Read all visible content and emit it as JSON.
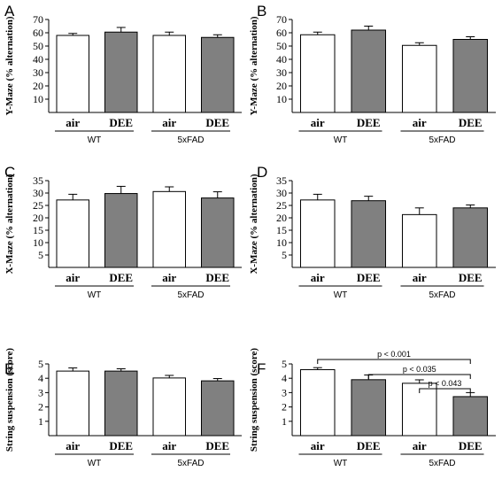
{
  "chart_data": [
    {
      "panel": "A",
      "type": "bar",
      "ylabel": "Y-Maze (% alternation)",
      "ylim": [
        0,
        70
      ],
      "yticks": [
        10,
        20,
        30,
        40,
        50,
        60,
        70
      ],
      "categories": [
        "air",
        "DEE",
        "air",
        "DEE"
      ],
      "groups": [
        "WT",
        "5xFAD"
      ],
      "values": [
        58,
        60.5,
        58,
        56.5
      ],
      "errors": [
        1.5,
        3.5,
        2.5,
        2
      ],
      "fills": [
        "#ffffff",
        "#808080",
        "#ffffff",
        "#808080"
      ],
      "annotations": []
    },
    {
      "panel": "B",
      "type": "bar",
      "ylabel": "Y-Maze (% alternation)",
      "ylim": [
        0,
        70
      ],
      "yticks": [
        10,
        20,
        30,
        40,
        50,
        60,
        70
      ],
      "categories": [
        "air",
        "DEE",
        "air",
        "DEE"
      ],
      "groups": [
        "WT",
        "5xFAD"
      ],
      "values": [
        58.5,
        62,
        50.5,
        55
      ],
      "errors": [
        2,
        3,
        2,
        2
      ],
      "fills": [
        "#ffffff",
        "#808080",
        "#ffffff",
        "#808080"
      ],
      "annotations": []
    },
    {
      "panel": "C",
      "type": "bar",
      "ylabel": "X-Maze (% alternation)",
      "ylim": [
        0,
        35
      ],
      "yticks": [
        5,
        10,
        15,
        20,
        25,
        30,
        35
      ],
      "categories": [
        "air",
        "DEE",
        "air",
        "DEE"
      ],
      "groups": [
        "WT",
        "5xFAD"
      ],
      "values": [
        27.2,
        29.8,
        30.6,
        28
      ],
      "errors": [
        2.3,
        2.9,
        1.9,
        2.5
      ],
      "fills": [
        "#ffffff",
        "#808080",
        "#ffffff",
        "#808080"
      ],
      "annotations": []
    },
    {
      "panel": "D",
      "type": "bar",
      "ylabel": "X-Maze (% alternation)",
      "ylim": [
        0,
        35
      ],
      "yticks": [
        5,
        10,
        15,
        20,
        25,
        30,
        35
      ],
      "categories": [
        "air",
        "DEE",
        "air",
        "DEE"
      ],
      "groups": [
        "WT",
        "5xFAD"
      ],
      "values": [
        27.2,
        26.9,
        21.3,
        24
      ],
      "errors": [
        2.3,
        1.8,
        2.7,
        1.2
      ],
      "fills": [
        "#ffffff",
        "#808080",
        "#ffffff",
        "#808080"
      ],
      "annotations": []
    },
    {
      "panel": "E",
      "type": "bar",
      "ylabel": "String suspension (score)",
      "ylim": [
        0,
        5
      ],
      "yticks": [
        1,
        2,
        3,
        4,
        5
      ],
      "categories": [
        "air",
        "DEE",
        "air",
        "DEE"
      ],
      "groups": [
        "WT",
        "5xFAD"
      ],
      "values": [
        4.5,
        4.5,
        4.02,
        3.82
      ],
      "errors": [
        0.22,
        0.16,
        0.18,
        0.16
      ],
      "fills": [
        "#ffffff",
        "#808080",
        "#ffffff",
        "#808080"
      ],
      "annotations": []
    },
    {
      "panel": "F",
      "type": "bar",
      "ylabel": "String suspension (score)",
      "ylim": [
        0,
        5
      ],
      "yticks": [
        1,
        2,
        3,
        4,
        5
      ],
      "categories": [
        "air",
        "DEE",
        "air",
        "DEE"
      ],
      "groups": [
        "WT",
        "5xFAD"
      ],
      "values": [
        4.6,
        3.9,
        3.65,
        2.72
      ],
      "errors": [
        0.14,
        0.33,
        0.24,
        0.28
      ],
      "fills": [
        "#ffffff",
        "#808080",
        "#ffffff",
        "#808080"
      ],
      "annotations": [
        {
          "from": 0,
          "to": 3,
          "label": "p < 0.001"
        },
        {
          "from": 1,
          "to": 3,
          "label": "p < 0.035"
        },
        {
          "from": 2,
          "to": 3,
          "label": "p < 0.043"
        }
      ]
    }
  ]
}
